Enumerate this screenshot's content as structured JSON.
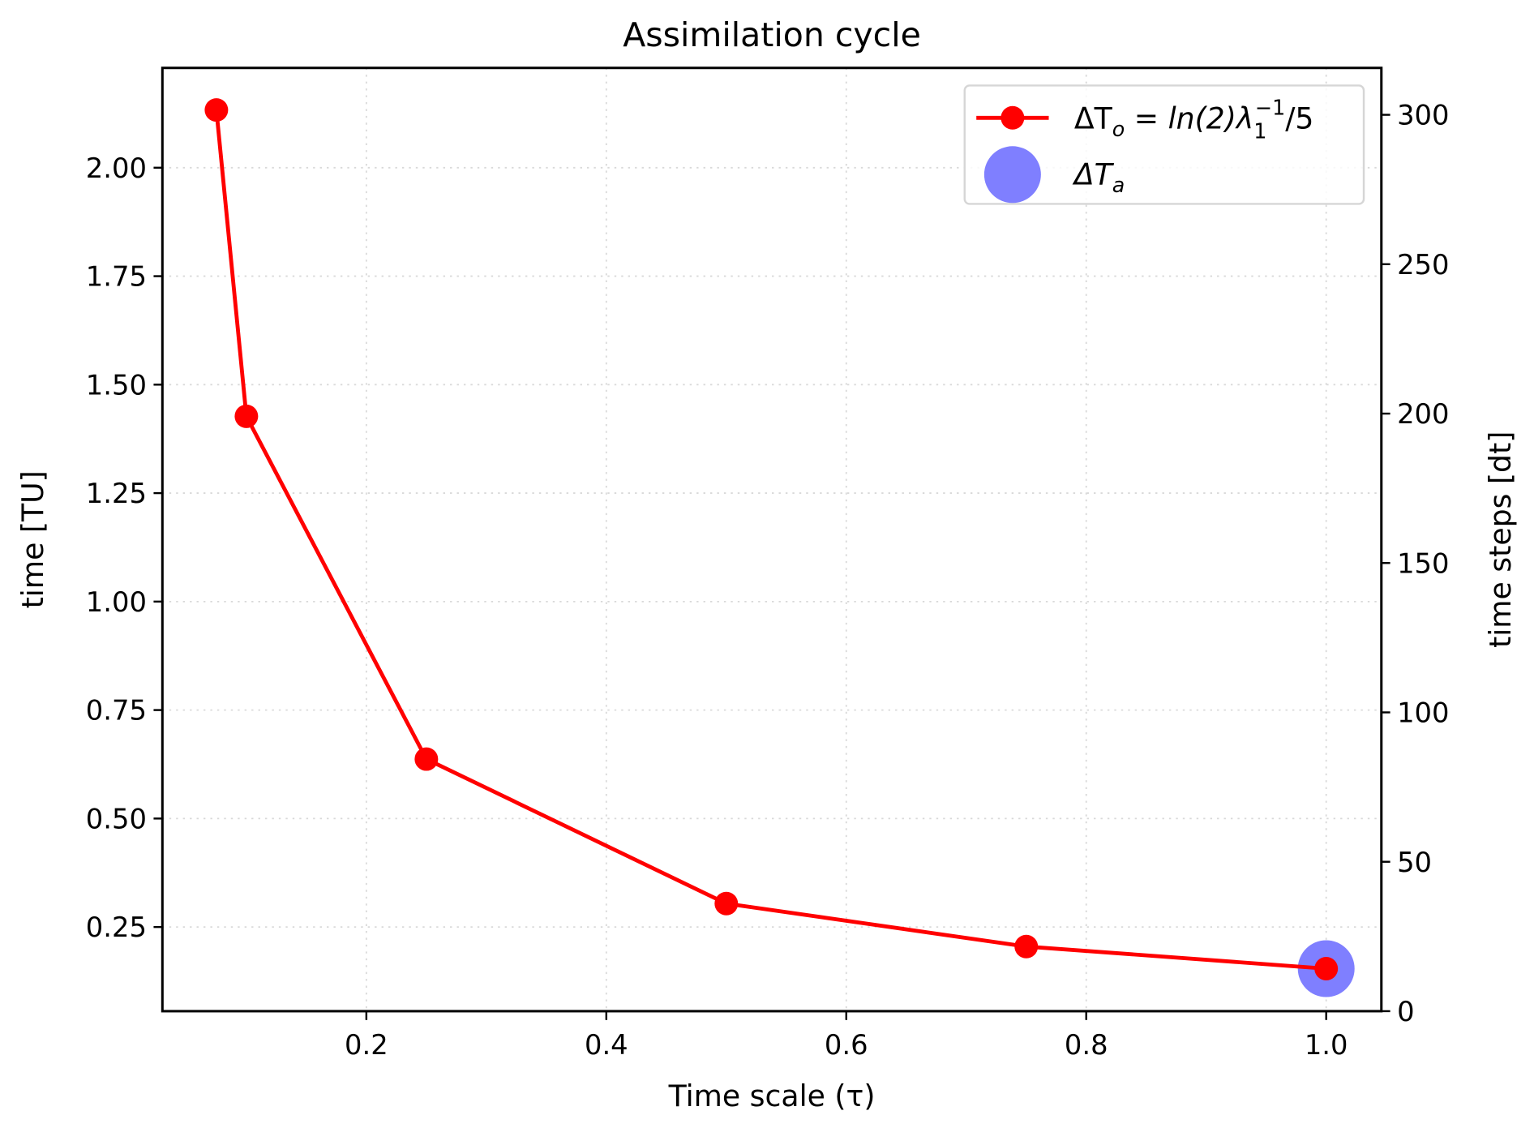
{
  "chart_data": {
    "type": "line",
    "title": "Assimilation cycle",
    "xlabel": "Time scale (τ)",
    "ylabel": "time [TU]",
    "y2label": "time steps [dt]",
    "xlim": [
      0.03,
      1.046
    ],
    "ylim": [
      0.056,
      2.23
    ],
    "y2lim": [
      0,
      315.7
    ],
    "grid": true,
    "legend_position": "top-right",
    "xticks": [
      "0.2",
      "0.4",
      "0.6",
      "0.8",
      "1.0"
    ],
    "xtick_values": [
      0.2,
      0.4,
      0.6,
      0.8,
      1.0
    ],
    "yticks": [
      "0.25",
      "0.50",
      "0.75",
      "1.00",
      "1.25",
      "1.50",
      "1.75",
      "2.00"
    ],
    "ytick_values": [
      0.25,
      0.5,
      0.75,
      1.0,
      1.25,
      1.5,
      1.75,
      2.0
    ],
    "y2ticks": [
      "0",
      "50",
      "100",
      "150",
      "200",
      "250",
      "300"
    ],
    "y2tick_values": [
      0,
      50,
      100,
      150,
      200,
      250,
      300
    ],
    "series": [
      {
        "name": "ΔT_o = ln(2)λ_1^-1/5",
        "color": "#ff0000",
        "x": [
          0.075,
          0.1,
          0.25,
          0.5,
          0.75,
          1.0
        ],
        "y": [
          2.133,
          1.427,
          0.637,
          0.304,
          0.205,
          0.154
        ]
      },
      {
        "name": "ΔT_a",
        "color": "#7f7fff",
        "x": [
          1.0
        ],
        "y": [
          0.154
        ]
      }
    ],
    "legend": {
      "o_prefix": "ΔT",
      "o_sub": "o",
      "o_mid": " = ln(2)λ",
      "o_sub2": "1",
      "o_sup": "−1",
      "o_suffix": "/5",
      "a_prefix": "ΔT",
      "a_sub": "a"
    }
  }
}
